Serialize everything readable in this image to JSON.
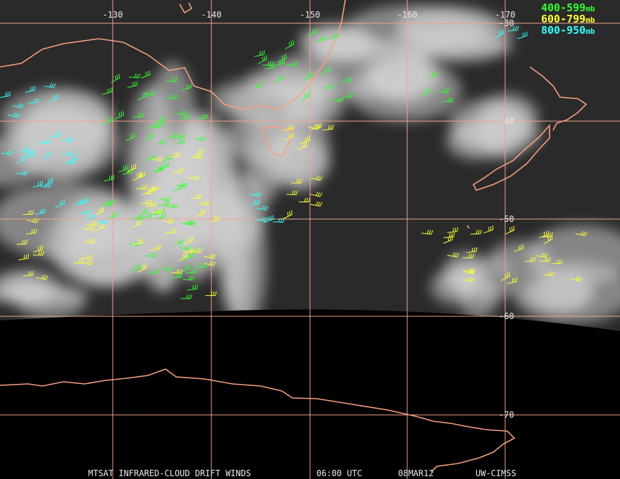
{
  "map": {
    "longitude_labels": [
      "-130",
      "-140",
      "-150",
      "-160",
      "-170"
    ],
    "latitude_labels": [
      "-30",
      "-40",
      "-50",
      "-60",
      "-70"
    ]
  },
  "legend": [
    {
      "label": "400-599",
      "unit": "mb",
      "color": "#33ff33"
    },
    {
      "label": "600-799",
      "unit": "mb",
      "color": "#ffff33"
    },
    {
      "label": "800-950",
      "unit": "mb",
      "color": "#33ffff"
    }
  ],
  "footer": [
    "MTSAT INFRARED-CLOUD DRIFT WINDS",
    "06:00 UTC",
    "08MAR12",
    "UW-CIMSS"
  ]
}
